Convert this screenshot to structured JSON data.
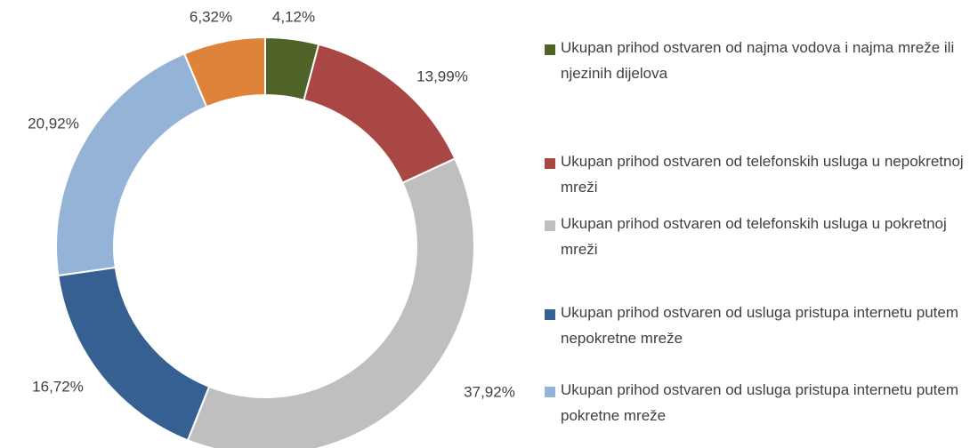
{
  "chart_data": {
    "type": "donut",
    "categories": [
      "Ukupan prihod ostvaren od najma vodova i najma mreže ili njezinih dijelova",
      "Ukupan prihod ostvaren od telefonskih usluga u nepokretnoj mreži",
      "Ukupan prihod ostvaren od telefonskih usluga u pokretnoj mreži",
      "Ukupan prihod ostvaren od usluga pristupa internetu putem nepokretne mreže",
      "Ukupan prihod ostvaren od usluga pristupa internetu putem pokretne mreže",
      null
    ],
    "values": [
      4.12,
      13.99,
      37.92,
      16.72,
      20.92,
      6.32
    ],
    "value_labels": [
      "4,12%",
      "13,99%",
      "37,92%",
      "16,72%",
      "20,92%",
      "6,32%"
    ],
    "colors": [
      "#4f6228",
      "#a84744",
      "#bfbfbf",
      "#366092",
      "#95b3d7",
      "#e0833a"
    ],
    "legend": "right"
  }
}
